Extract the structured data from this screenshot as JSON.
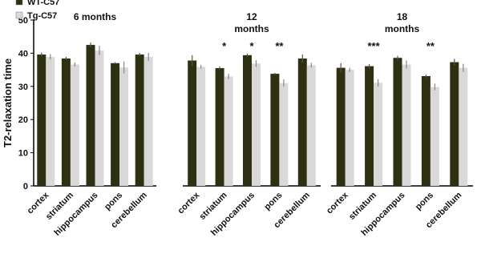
{
  "chart_data": [
    {
      "type": "bar",
      "title": "6 months",
      "y_label": "T2-relaxation time",
      "categories": [
        "cortex",
        "striatum",
        "hippocampus",
        "pons",
        "cerebellum"
      ],
      "series": [
        {
          "name": "WT-C57",
          "color": "#2f2f12",
          "values": [
            39.6,
            38.4,
            42.5,
            37.0,
            39.6
          ],
          "errors": [
            0.6,
            0.5,
            0.7,
            0.3,
            0.5
          ]
        },
        {
          "name": "Tg-C57",
          "color": "#d9d9d9",
          "values": [
            38.9,
            36.6,
            40.8,
            35.7,
            38.9
          ],
          "errors": [
            0.8,
            0.6,
            1.4,
            1.8,
            1.2
          ]
        }
      ],
      "ylim": [
        0,
        50
      ],
      "yticks": [
        0,
        10,
        20,
        30,
        40,
        50
      ]
    },
    {
      "type": "bar",
      "title": "12 months",
      "categories": [
        "cortex",
        "striatum",
        "hippocampus",
        "pons",
        "cerebellum"
      ],
      "series": [
        {
          "name": "WT-C57",
          "color": "#2f2f12",
          "values": [
            37.8,
            35.5,
            39.4,
            33.8,
            38.4
          ],
          "errors": [
            1.6,
            0.5,
            0.5,
            0.3,
            1.2
          ]
        },
        {
          "name": "Tg-C57",
          "color": "#d9d9d9",
          "values": [
            35.9,
            33.0,
            36.9,
            31.0,
            36.4
          ],
          "errors": [
            0.6,
            0.8,
            1.0,
            1.1,
            0.7
          ]
        }
      ],
      "significance": [
        null,
        "*",
        "*",
        "**",
        null
      ],
      "ylim": [
        0,
        50
      ]
    },
    {
      "type": "bar",
      "title": "18 months",
      "categories": [
        "cortex",
        "striatum",
        "hippocampus",
        "pons",
        "cerebellum"
      ],
      "series": [
        {
          "name": "WT-C57",
          "color": "#2f2f12",
          "values": [
            35.6,
            36.1,
            38.6,
            33.1,
            37.3
          ],
          "errors": [
            1.4,
            0.6,
            0.6,
            0.4,
            1.0
          ]
        },
        {
          "name": "Tg-C57",
          "color": "#d9d9d9",
          "values": [
            35.0,
            31.1,
            36.6,
            29.8,
            35.6
          ],
          "errors": [
            0.6,
            1.1,
            1.2,
            1.0,
            1.2
          ]
        }
      ],
      "significance": [
        null,
        "***",
        null,
        "**",
        null
      ],
      "ylim": [
        0,
        50
      ]
    }
  ]
}
